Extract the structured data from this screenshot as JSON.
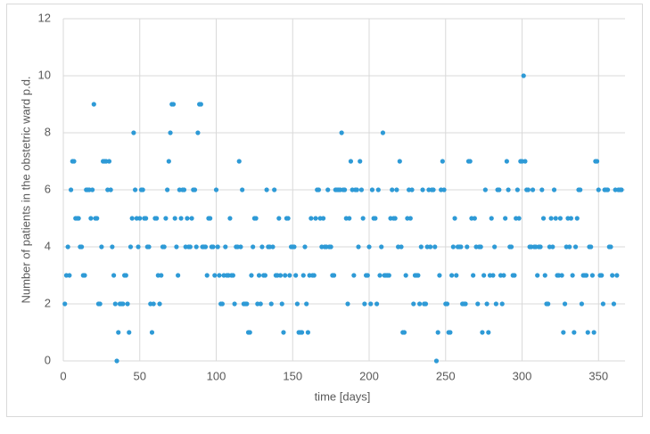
{
  "chart_data": {
    "type": "scatter",
    "x_label": "time [days]",
    "y_label": "Number of patients in the obstetric ward p.d.",
    "xlim": [
      0,
      365
    ],
    "xticks": [
      0,
      50,
      100,
      150,
      200,
      250,
      300,
      350
    ],
    "ylim": [
      0,
      12
    ],
    "yticks": [
      0,
      2,
      4,
      6,
      8,
      10,
      12
    ],
    "grid": true,
    "color": "#2e9ad6",
    "x": [
      1,
      2,
      3,
      4,
      5,
      6,
      7,
      8,
      9,
      10,
      11,
      12,
      13,
      14,
      15,
      16,
      17,
      18,
      19,
      20,
      21,
      22,
      23,
      24,
      25,
      26,
      27,
      28,
      29,
      30,
      31,
      32,
      33,
      34,
      35,
      36,
      37,
      38,
      39,
      40,
      41,
      42,
      43,
      44,
      45,
      46,
      47,
      48,
      49,
      50,
      51,
      52,
      53,
      54,
      55,
      56,
      57,
      58,
      59,
      60,
      61,
      62,
      63,
      64,
      65,
      66,
      67,
      68,
      69,
      70,
      71,
      72,
      73,
      74,
      75,
      76,
      77,
      78,
      79,
      80,
      81,
      82,
      83,
      84,
      85,
      86,
      87,
      88,
      89,
      90,
      91,
      92,
      93,
      94,
      95,
      96,
      97,
      98,
      99,
      100,
      101,
      102,
      103,
      104,
      105,
      106,
      107,
      108,
      109,
      110,
      111,
      112,
      113,
      114,
      115,
      116,
      117,
      118,
      119,
      120,
      121,
      122,
      123,
      124,
      125,
      126,
      127,
      128,
      129,
      130,
      131,
      132,
      133,
      134,
      135,
      136,
      137,
      138,
      139,
      140,
      141,
      142,
      143,
      144,
      145,
      146,
      147,
      148,
      149,
      150,
      151,
      152,
      153,
      154,
      155,
      156,
      157,
      158,
      159,
      160,
      161,
      162,
      163,
      164,
      165,
      166,
      167,
      168,
      169,
      170,
      171,
      172,
      173,
      174,
      175,
      176,
      177,
      178,
      179,
      180,
      181,
      182,
      183,
      184,
      185,
      186,
      187,
      188,
      189,
      190,
      191,
      192,
      193,
      194,
      195,
      196,
      197,
      198,
      199,
      200,
      201,
      202,
      203,
      204,
      205,
      206,
      207,
      208,
      209,
      210,
      211,
      212,
      213,
      214,
      215,
      216,
      217,
      218,
      219,
      220,
      221,
      222,
      223,
      224,
      225,
      226,
      227,
      228,
      229,
      230,
      231,
      232,
      233,
      234,
      235,
      236,
      237,
      238,
      239,
      240,
      241,
      242,
      243,
      244,
      245,
      246,
      247,
      248,
      249,
      250,
      251,
      252,
      253,
      254,
      255,
      256,
      257,
      258,
      259,
      260,
      261,
      262,
      263,
      264,
      265,
      266,
      267,
      268,
      269,
      270,
      271,
      272,
      273,
      274,
      275,
      276,
      277,
      278,
      279,
      280,
      281,
      282,
      283,
      284,
      285,
      286,
      287,
      288,
      289,
      290,
      291,
      292,
      293,
      294,
      295,
      296,
      297,
      298,
      299,
      300,
      301,
      302,
      303,
      304,
      305,
      306,
      307,
      308,
      309,
      310,
      311,
      312,
      313,
      314,
      315,
      316,
      317,
      318,
      319,
      320,
      321,
      322,
      323,
      324,
      325,
      326,
      327,
      328,
      329,
      330,
      331,
      332,
      333,
      334,
      335,
      336,
      337,
      338,
      339,
      340,
      341,
      342,
      343,
      344,
      345,
      346,
      347,
      348,
      349,
      350,
      351,
      352,
      353,
      354,
      355,
      356,
      357,
      358,
      359,
      360,
      361,
      362,
      363,
      364,
      365
    ],
    "values": [
      2,
      3,
      4,
      3,
      6,
      7,
      7,
      5,
      5,
      5,
      4,
      4,
      3,
      3,
      6,
      6,
      6,
      5,
      6,
      9,
      5,
      5,
      2,
      2,
      4,
      7,
      7,
      7,
      6,
      7,
      6,
      4,
      3,
      2,
      0,
      1,
      2,
      2,
      2,
      3,
      3,
      2,
      1,
      4,
      5,
      8,
      6,
      5,
      4,
      5,
      6,
      6,
      5,
      5,
      4,
      4,
      2,
      1,
      2,
      5,
      5,
      3,
      2,
      3,
      4,
      4,
      5,
      6,
      7,
      8,
      9,
      9,
      5,
      4,
      3,
      6,
      5,
      6,
      6,
      4,
      5,
      4,
      4,
      5,
      6,
      6,
      4,
      8,
      9,
      9,
      4,
      4,
      4,
      3,
      5,
      5,
      4,
      4,
      3,
      6,
      4,
      3,
      2,
      2,
      3,
      4,
      3,
      3,
      5,
      3,
      3,
      2,
      4,
      4,
      7,
      4,
      6,
      2,
      2,
      2,
      1,
      1,
      3,
      4,
      5,
      5,
      2,
      3,
      2,
      4,
      3,
      3,
      6,
      4,
      4,
      2,
      4,
      6,
      3,
      3,
      5,
      3,
      2,
      1,
      3,
      5,
      5,
      3,
      4,
      4,
      4,
      3,
      2,
      1,
      1,
      1,
      3,
      4,
      2,
      1,
      3,
      5,
      3,
      3,
      5,
      6,
      6,
      5,
      4,
      5,
      4,
      4,
      6,
      4,
      4,
      3,
      3,
      6,
      6,
      6,
      6,
      8,
      6,
      6,
      5,
      2,
      5,
      7,
      6,
      3,
      6,
      6,
      4,
      7,
      6,
      5,
      2,
      3,
      3,
      4,
      2,
      6,
      5,
      5,
      2,
      6,
      3,
      4,
      8,
      3,
      3,
      3,
      3,
      5,
      6,
      5,
      5,
      6,
      4,
      7,
      4,
      1,
      1,
      3,
      5,
      6,
      5,
      6,
      2,
      3,
      3,
      3,
      2,
      4,
      6,
      2,
      2,
      4,
      6,
      4,
      6,
      6,
      4,
      0,
      1,
      3,
      6,
      7,
      6,
      2,
      2,
      1,
      1,
      3,
      4,
      5,
      3,
      4,
      4,
      4,
      2,
      2,
      2,
      4,
      7,
      7,
      5,
      3,
      5,
      4,
      2,
      4,
      4,
      1,
      3,
      6,
      2,
      1,
      3,
      5,
      3,
      4,
      2,
      6,
      6,
      3,
      2,
      3,
      5,
      7,
      6,
      4,
      4,
      3,
      3,
      5,
      6,
      5,
      7,
      7,
      10,
      7,
      6,
      6,
      4,
      4,
      6,
      4,
      4,
      3,
      4,
      4,
      6,
      5,
      3,
      2,
      2,
      4,
      5,
      4,
      6,
      5,
      3,
      3,
      5,
      3,
      1,
      2,
      4,
      5,
      4,
      5,
      3,
      1,
      4,
      5,
      6,
      6,
      2,
      3,
      3,
      3,
      1,
      4,
      4,
      3,
      1,
      7,
      7,
      6,
      3,
      3,
      2,
      6,
      6,
      6,
      4,
      4,
      3,
      2,
      6,
      3,
      6,
      6,
      6
    ]
  }
}
